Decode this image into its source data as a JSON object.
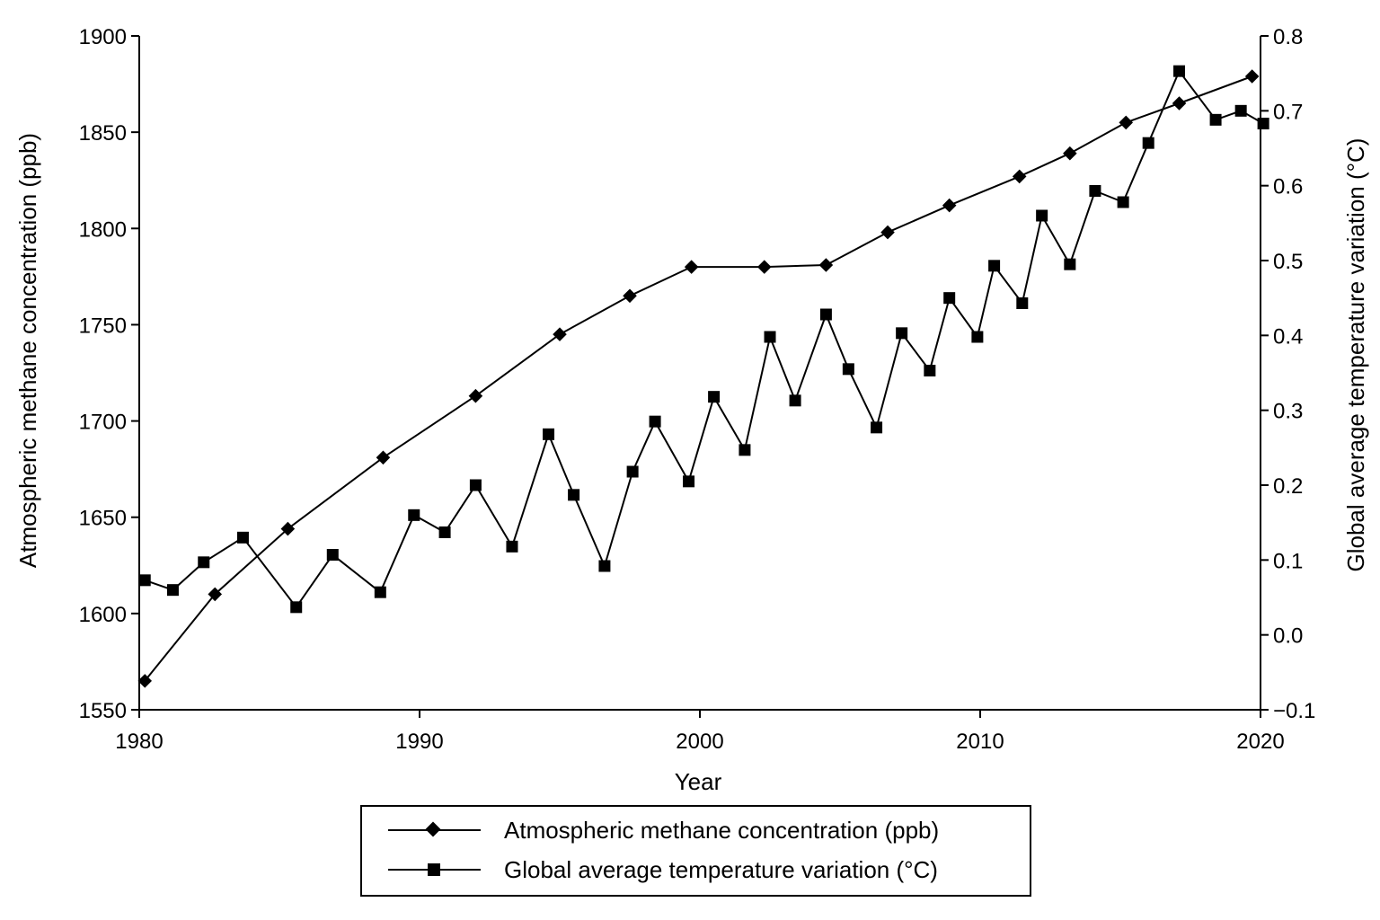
{
  "chart_data": {
    "type": "line",
    "title": "",
    "xlabel": "Year",
    "ylabel_left": "Atmospheric methane concentration (ppb)",
    "ylabel_right": "Global average temperature variation (°C)",
    "xlim": [
      1980,
      2020
    ],
    "ylim_left": [
      1550,
      1900
    ],
    "ylim_right": [
      -0.1,
      0.8
    ],
    "x_ticks": [
      1980,
      1990,
      2000,
      2010,
      2020
    ],
    "x_tick_labels": [
      "1980",
      "1990",
      "2000",
      "2010",
      "2020"
    ],
    "y_left_ticks": [
      1550,
      1600,
      1650,
      1700,
      1750,
      1800,
      1850,
      1900
    ],
    "y_left_tick_labels": [
      "1550",
      "1600",
      "1650",
      "1700",
      "1750",
      "1800",
      "1850",
      "1900"
    ],
    "y_right_ticks": [
      -0.1,
      0.0,
      0.1,
      0.2,
      0.3,
      0.4,
      0.5,
      0.6,
      0.7,
      0.8
    ],
    "y_right_tick_labels": [
      "−0.1",
      "0.0",
      "0.1",
      "0.2",
      "0.3",
      "0.4",
      "0.5",
      "0.6",
      "0.7",
      "0.8"
    ],
    "grid": false,
    "legend_position": "bottom",
    "series": [
      {
        "name": "Atmospheric methane concentration (ppb)",
        "axis": "left",
        "marker": "diamond",
        "x": [
          1980.2,
          1982.7,
          1985.3,
          1988.7,
          1992.0,
          1995.0,
          1997.5,
          1999.7,
          2002.3,
          2004.5,
          2006.7,
          2008.9,
          2011.4,
          2013.2,
          2015.2,
          2017.1,
          2019.7
        ],
        "values": [
          1565,
          1610,
          1644,
          1681,
          1713,
          1745,
          1765,
          1780,
          1780,
          1781,
          1798,
          1812,
          1827,
          1839,
          1855,
          1865,
          1879
        ]
      },
      {
        "name": "Global average temperature variation (°C)",
        "axis": "right",
        "marker": "square",
        "x": [
          1980.2,
          1981.2,
          1982.3,
          1983.7,
          1985.6,
          1986.9,
          1988.6,
          1989.8,
          1990.9,
          1992.0,
          1993.3,
          1994.6,
          1995.5,
          1996.6,
          1997.6,
          1998.4,
          1999.6,
          2000.5,
          2001.6,
          2002.5,
          2003.4,
          2004.5,
          2005.3,
          2006.3,
          2007.2,
          2008.2,
          2008.9,
          2009.9,
          2010.5,
          2011.5,
          2012.2,
          2013.2,
          2014.1,
          2015.1,
          2016.0,
          2017.1,
          2018.4,
          2019.3,
          2020.1
        ],
        "values": [
          0.073,
          0.06,
          0.097,
          0.13,
          0.037,
          0.107,
          0.057,
          0.16,
          0.137,
          0.2,
          0.118,
          0.268,
          0.187,
          0.092,
          0.218,
          0.285,
          0.205,
          0.318,
          0.247,
          0.398,
          0.313,
          0.428,
          0.355,
          0.277,
          0.403,
          0.353,
          0.45,
          0.398,
          0.493,
          0.443,
          0.56,
          0.495,
          0.593,
          0.578,
          0.657,
          0.753,
          0.688,
          0.7,
          0.683
        ]
      }
    ]
  }
}
